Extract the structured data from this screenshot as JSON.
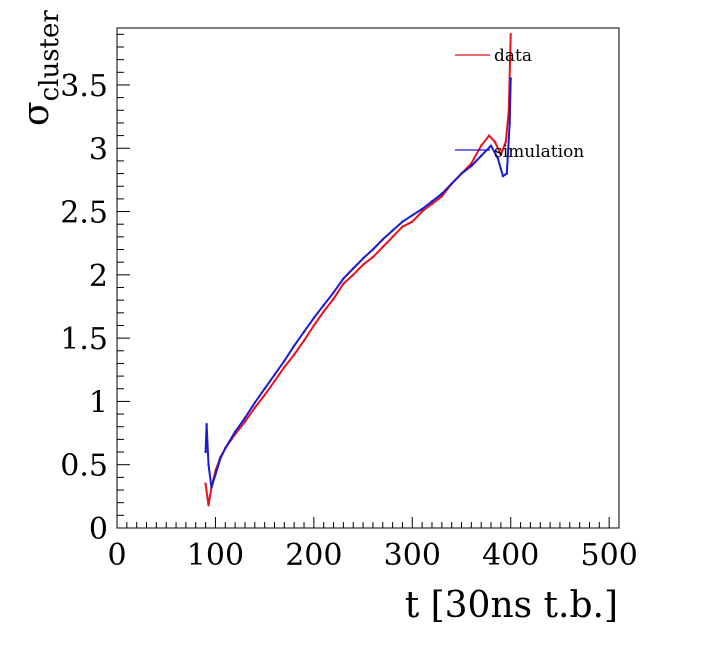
{
  "chart_data": {
    "type": "line",
    "title": "",
    "xlabel": "t [30ns t.b.]",
    "ylabel_main": "σ",
    "ylabel_sub": "cluster",
    "xlim": [
      0,
      510
    ],
    "ylim": [
      0,
      3.95
    ],
    "x_ticks": [
      0,
      100,
      200,
      300,
      400,
      500
    ],
    "y_ticks": [
      0,
      0.5,
      1,
      1.5,
      2,
      2.5,
      3,
      3.5
    ],
    "y_tick_labels": [
      "0",
      "0.5",
      "1",
      "1.5",
      "2",
      "2.5",
      "3",
      "3.5"
    ],
    "legend_placement": "top-right",
    "grid": false,
    "series": [
      {
        "name": "data",
        "color": "#e8111c",
        "x": [
          90,
          93,
          96,
          100,
          105,
          110,
          120,
          130,
          140,
          150,
          160,
          170,
          180,
          190,
          200,
          210,
          220,
          230,
          240,
          250,
          260,
          270,
          280,
          290,
          300,
          310,
          320,
          330,
          340,
          350,
          360,
          370,
          378,
          384,
          390,
          395,
          398,
          400
        ],
        "y": [
          0.35,
          0.18,
          0.32,
          0.45,
          0.56,
          0.63,
          0.74,
          0.84,
          0.95,
          1.05,
          1.16,
          1.27,
          1.37,
          1.48,
          1.6,
          1.71,
          1.81,
          1.93,
          2.0,
          2.08,
          2.14,
          2.22,
          2.3,
          2.38,
          2.42,
          2.5,
          2.56,
          2.62,
          2.72,
          2.8,
          2.88,
          3.02,
          3.1,
          3.05,
          2.95,
          3.05,
          3.3,
          3.9
        ]
      },
      {
        "name": "simulation",
        "color": "#1a1ad4",
        "x": [
          90,
          91,
          93,
          96,
          100,
          105,
          110,
          120,
          130,
          140,
          150,
          160,
          170,
          180,
          190,
          200,
          210,
          220,
          230,
          240,
          250,
          260,
          270,
          280,
          290,
          300,
          310,
          320,
          330,
          340,
          350,
          360,
          370,
          380,
          387,
          392,
          396,
          399,
          400
        ],
        "y": [
          0.6,
          0.82,
          0.5,
          0.32,
          0.42,
          0.55,
          0.63,
          0.76,
          0.87,
          0.99,
          1.1,
          1.21,
          1.32,
          1.44,
          1.55,
          1.66,
          1.76,
          1.86,
          1.97,
          2.05,
          2.13,
          2.2,
          2.28,
          2.35,
          2.42,
          2.47,
          2.52,
          2.58,
          2.64,
          2.72,
          2.8,
          2.86,
          2.94,
          3.02,
          2.92,
          2.78,
          2.8,
          3.2,
          3.55
        ]
      }
    ]
  }
}
